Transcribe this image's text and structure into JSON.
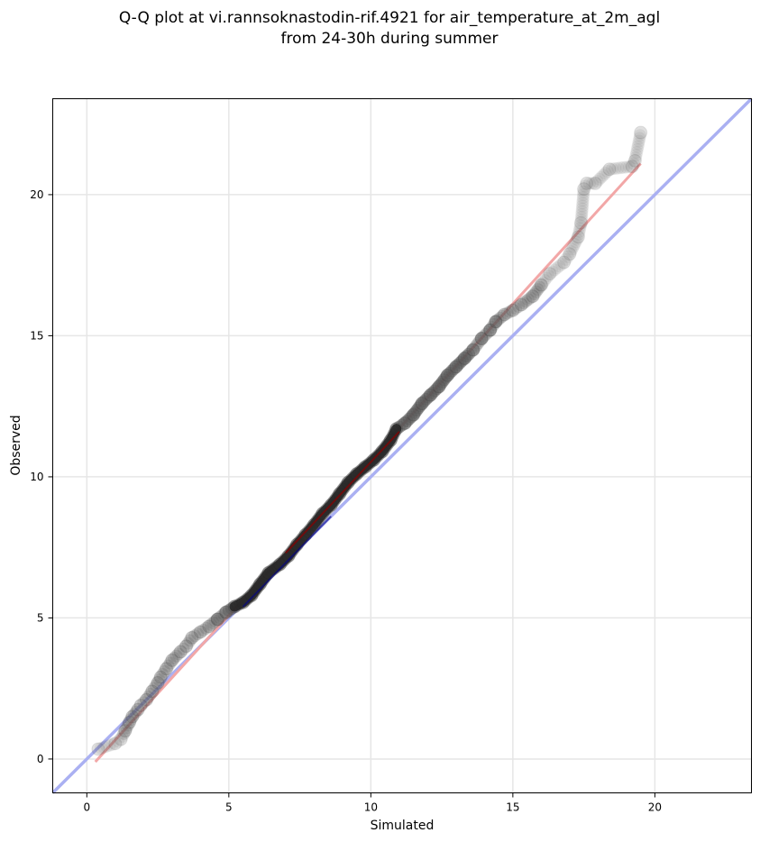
{
  "chart_data": {
    "type": "scatter",
    "title_line1": "Q-Q plot at vi.rannsoknastodin-rif.4921 for air_temperature_at_2m_agl",
    "title_line2": "from 24-30h during summer",
    "xlabel": "Simulated",
    "ylabel": "Observed",
    "xlim": [
      -1.2,
      23.4
    ],
    "ylim": [
      -1.2,
      23.4
    ],
    "xticks": [
      0,
      5,
      10,
      15,
      20
    ],
    "yticks": [
      0,
      5,
      10,
      15,
      20
    ],
    "grid": true,
    "colors": {
      "points": "#555555",
      "identity_line": "#aab0f2",
      "fit_line": "#f2a7a7",
      "dense_core": "#1a1a1a",
      "red_trace": "#8b0000",
      "blue_trace": "#00008b"
    },
    "identity_line": {
      "x": [
        -1.2,
        23.4
      ],
      "y": [
        -1.2,
        23.4
      ]
    },
    "fit_line": {
      "x": [
        0.3,
        19.5
      ],
      "y": [
        -0.1,
        21.1
      ]
    },
    "quantiles": [
      [
        0.4,
        0.35
      ],
      [
        1.0,
        0.55
      ],
      [
        1.2,
        0.7
      ],
      [
        1.35,
        1.0
      ],
      [
        1.5,
        1.3
      ],
      [
        1.6,
        1.5
      ],
      [
        1.8,
        1.75
      ],
      [
        1.9,
        1.9
      ],
      [
        2.1,
        2.1
      ],
      [
        2.3,
        2.4
      ],
      [
        2.5,
        2.7
      ],
      [
        2.6,
        2.9
      ],
      [
        2.8,
        3.2
      ],
      [
        3.0,
        3.5
      ],
      [
        3.3,
        3.8
      ],
      [
        3.5,
        4.0
      ],
      [
        3.7,
        4.3
      ],
      [
        4.0,
        4.5
      ],
      [
        4.3,
        4.7
      ],
      [
        4.6,
        4.95
      ],
      [
        4.9,
        5.2
      ],
      [
        5.2,
        5.4
      ],
      [
        5.5,
        5.55
      ],
      [
        5.8,
        5.8
      ],
      [
        6.1,
        6.2
      ],
      [
        6.4,
        6.6
      ],
      [
        6.8,
        6.9
      ],
      [
        7.1,
        7.2
      ],
      [
        7.4,
        7.6
      ],
      [
        7.7,
        7.95
      ],
      [
        8.0,
        8.3
      ],
      [
        8.3,
        8.7
      ],
      [
        8.6,
        9.0
      ],
      [
        8.9,
        9.4
      ],
      [
        9.2,
        9.8
      ],
      [
        9.5,
        10.1
      ],
      [
        9.8,
        10.35
      ],
      [
        10.1,
        10.6
      ],
      [
        10.4,
        10.9
      ],
      [
        10.7,
        11.3
      ],
      [
        10.9,
        11.7
      ],
      [
        11.2,
        11.9
      ],
      [
        11.5,
        12.2
      ],
      [
        11.8,
        12.6
      ],
      [
        12.1,
        12.9
      ],
      [
        12.4,
        13.2
      ],
      [
        12.7,
        13.6
      ],
      [
        13.0,
        13.9
      ],
      [
        13.3,
        14.2
      ],
      [
        13.6,
        14.5
      ],
      [
        13.9,
        14.9
      ],
      [
        14.2,
        15.2
      ],
      [
        14.4,
        15.5
      ],
      [
        14.7,
        15.75
      ],
      [
        15.0,
        15.9
      ],
      [
        15.3,
        16.1
      ],
      [
        15.7,
        16.4
      ],
      [
        16.0,
        16.8
      ],
      [
        16.3,
        17.2
      ],
      [
        16.8,
        17.6
      ],
      [
        17.0,
        17.9
      ],
      [
        17.3,
        18.5
      ],
      [
        17.4,
        19.0
      ],
      [
        17.5,
        20.2
      ],
      [
        17.6,
        20.4
      ],
      [
        17.9,
        20.4
      ],
      [
        18.4,
        20.9
      ],
      [
        19.2,
        21.0
      ],
      [
        19.3,
        21.2
      ],
      [
        19.5,
        22.2
      ]
    ]
  }
}
